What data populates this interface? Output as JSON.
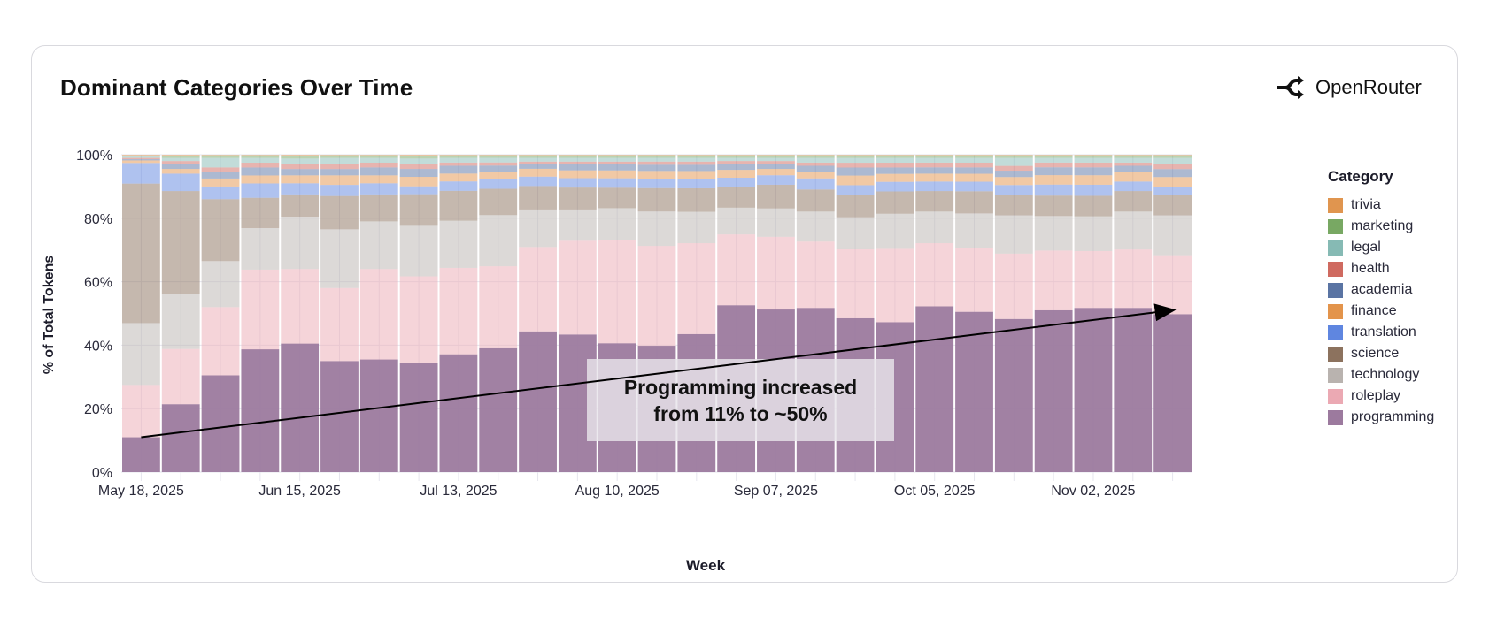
{
  "card": {
    "title": "Dominant Categories Over Time",
    "brand": "OpenRouter",
    "brand_icon": "openrouter-logo-icon"
  },
  "annotation": {
    "line1": "Programming increased",
    "line2": "from 11% to ~50%",
    "arrow": {
      "from": {
        "week_index": 0,
        "value": 11
      },
      "to": {
        "week_index": 26,
        "value": 51
      }
    }
  },
  "legend": {
    "title": "Category",
    "items": [
      {
        "label": "trivia",
        "color": "#e0954f"
      },
      {
        "label": "marketing",
        "color": "#78a863"
      },
      {
        "label": "legal",
        "color": "#86bab4"
      },
      {
        "label": "health",
        "color": "#cf6a60"
      },
      {
        "label": "academia",
        "color": "#5a74a3"
      },
      {
        "label": "finance",
        "color": "#e3944b"
      },
      {
        "label": "translation",
        "color": "#5f86e0"
      },
      {
        "label": "science",
        "color": "#8c725e"
      },
      {
        "label": "technology",
        "color": "#b9b3af"
      },
      {
        "label": "roleplay",
        "color": "#eba9b3"
      },
      {
        "label": "programming",
        "color": "#9c7a9e"
      }
    ]
  },
  "chart_data": {
    "type": "bar",
    "stacked": true,
    "normalized": true,
    "title": "Dominant Categories Over Time",
    "xlabel": "Week",
    "ylabel": "% of Total Tokens",
    "ylim": [
      0,
      100
    ],
    "yticks": [
      "0%",
      "20%",
      "40%",
      "60%",
      "80%",
      "100%"
    ],
    "xtick_labels": [
      {
        "index": 0,
        "label": "May 18, 2025"
      },
      {
        "index": 4,
        "label": "Jun 15, 2025"
      },
      {
        "index": 8,
        "label": "Jul 13, 2025"
      },
      {
        "index": 12,
        "label": "Aug 10, 2025"
      },
      {
        "index": 16,
        "label": "Sep 07, 2025"
      },
      {
        "index": 20,
        "label": "Oct 05, 2025"
      },
      {
        "index": 24,
        "label": "Nov 02, 2025"
      }
    ],
    "categories": [
      "2025-05-18",
      "2025-05-25",
      "2025-06-01",
      "2025-06-08",
      "2025-06-15",
      "2025-06-22",
      "2025-06-29",
      "2025-07-06",
      "2025-07-13",
      "2025-07-20",
      "2025-07-27",
      "2025-08-03",
      "2025-08-10",
      "2025-08-17",
      "2025-08-24",
      "2025-08-31",
      "2025-09-07",
      "2025-09-14",
      "2025-09-21",
      "2025-09-28",
      "2025-10-05",
      "2025-10-12",
      "2025-10-19",
      "2025-10-26",
      "2025-11-02",
      "2025-11-09",
      "2025-11-16"
    ],
    "legend_position": "right",
    "grid": true,
    "series": [
      {
        "name": "programming",
        "values": [
          11,
          21.5,
          30.5,
          38.5,
          40.5,
          35,
          35.5,
          34.5,
          37.5,
          40,
          45,
          44,
          41,
          40.5,
          44,
          53,
          51.5,
          52,
          48,
          47,
          52.5,
          50.5,
          48,
          51.5,
          52,
          52,
          49.5
        ]
      },
      {
        "name": "roleplay",
        "values": [
          16.5,
          17.5,
          21.5,
          25,
          23.5,
          23,
          28.5,
          27.5,
          27.5,
          26.5,
          27,
          30,
          33,
          32,
          29,
          22.5,
          23,
          21,
          21.5,
          23,
          20,
          20,
          20.5,
          19,
          18,
          18.5,
          18.5
        ]
      },
      {
        "name": "technology",
        "values": [
          19.5,
          17.5,
          14.5,
          13,
          16.5,
          18.5,
          15,
          16,
          15,
          16.5,
          12,
          10,
          10,
          11,
          10,
          8.5,
          9,
          9.5,
          10,
          11,
          10,
          11,
          12,
          11,
          11,
          12,
          12.5
        ]
      },
      {
        "name": "science",
        "values": [
          44,
          32.5,
          19.5,
          9.5,
          7,
          10.5,
          8.5,
          10,
          9.5,
          8.5,
          7.5,
          7,
          6.5,
          7.5,
          7.5,
          6.5,
          7.5,
          7,
          7,
          7,
          6.5,
          7,
          6.5,
          6.5,
          6.5,
          6.5,
          6.5
        ]
      },
      {
        "name": "translation",
        "values": [
          6.5,
          5.5,
          4,
          4.5,
          3.5,
          3.5,
          3.5,
          2.5,
          3,
          3,
          3,
          3,
          3,
          3,
          3,
          3,
          3,
          3.5,
          3,
          3,
          3,
          3,
          3,
          3.5,
          3.5,
          3,
          2.5
        ]
      },
      {
        "name": "finance",
        "values": [
          0.8,
          1.5,
          2.5,
          2.5,
          2.5,
          3,
          2.5,
          3,
          2.5,
          2.5,
          2.5,
          2.5,
          2.5,
          2.5,
          2.5,
          2.5,
          2,
          2,
          3,
          2.5,
          2.5,
          2.5,
          2.5,
          3,
          3,
          3,
          3
        ]
      },
      {
        "name": "academia",
        "values": [
          0.4,
          1.5,
          2,
          2.5,
          2,
          2,
          2.5,
          2.5,
          2.5,
          2,
          1.5,
          2,
          2,
          2,
          2,
          2,
          1.5,
          2,
          2.5,
          2,
          2,
          2,
          2,
          2.5,
          2.5,
          2,
          2.5
        ]
      },
      {
        "name": "health",
        "values": [
          0.4,
          1,
          1.5,
          1.5,
          1.5,
          1.5,
          1.5,
          1.5,
          1,
          1,
          0.8,
          0.8,
          0.8,
          1,
          1,
          0.8,
          1,
          1,
          1.5,
          1.5,
          1.5,
          1.5,
          1.5,
          1.5,
          1.5,
          1,
          1.5
        ]
      },
      {
        "name": "legal",
        "values": [
          0.4,
          1,
          3,
          1.5,
          1.8,
          2,
          1.5,
          1.8,
          1.5,
          1.5,
          1.2,
          1.2,
          1.2,
          1.2,
          1.2,
          1,
          1,
          1.5,
          1.5,
          1.5,
          1.5,
          1.5,
          2.5,
          1.5,
          1.5,
          1.5,
          2
        ]
      },
      {
        "name": "marketing",
        "values": [
          0.3,
          0.5,
          0.8,
          0.8,
          0.8,
          0.8,
          0.8,
          0.8,
          0.8,
          0.8,
          0.8,
          0.8,
          0.8,
          0.8,
          0.8,
          0.8,
          0.8,
          0.8,
          0.8,
          0.8,
          0.8,
          0.8,
          0.8,
          0.8,
          0.8,
          0.8,
          0.8
        ]
      },
      {
        "name": "trivia",
        "values": [
          0.3,
          0.5,
          0.2,
          0.2,
          0.4,
          0.2,
          0.2,
          0.4,
          0.2,
          0.2,
          0.2,
          0.2,
          0.2,
          0.2,
          0.2,
          0.2,
          0.2,
          0.2,
          0.2,
          0.2,
          0.2,
          0.2,
          0.2,
          0.2,
          0.2,
          0.2,
          0.2
        ]
      }
    ]
  }
}
